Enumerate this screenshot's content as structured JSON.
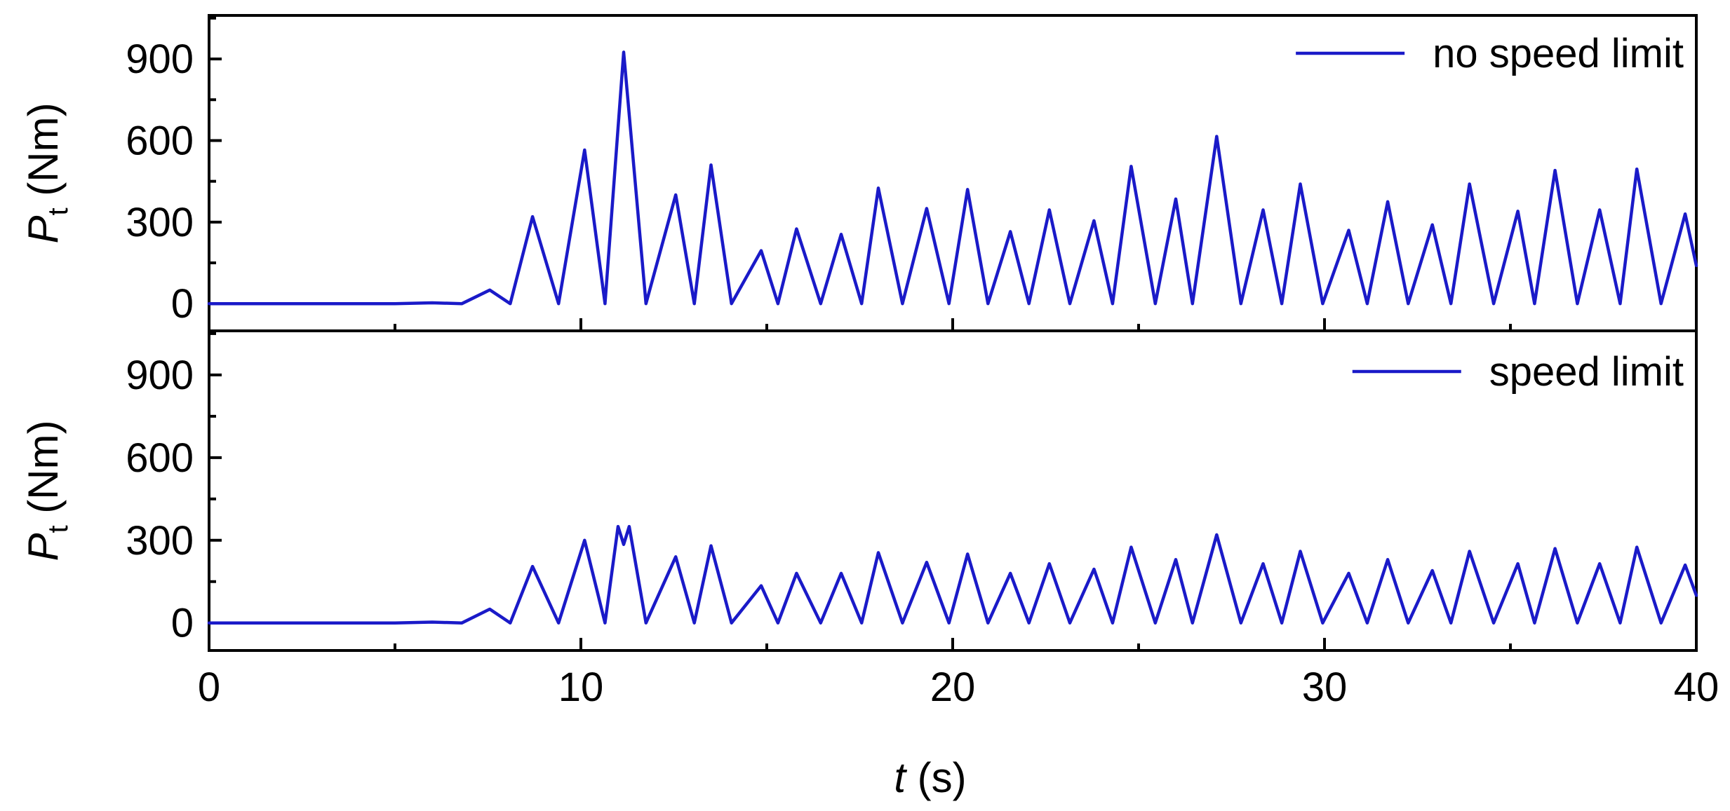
{
  "chart_data": [
    {
      "type": "line",
      "xlabel_var": "t",
      "xlabel_unit": " (s)",
      "ylabel_var": "P",
      "ylabel_sub": "t",
      "ylabel_unit": " (Nm)",
      "xlim": [
        0,
        40
      ],
      "ylim": [
        -100,
        1060
      ],
      "x_ticks": [
        0,
        10,
        20,
        30,
        40
      ],
      "y_ticks": [
        0,
        300,
        600,
        900
      ],
      "grid": false,
      "legend_position": "top-right",
      "series_color": "#1a1ac8",
      "series": [
        {
          "name": "no speed limit",
          "x": [
            0,
            5,
            6,
            6.8,
            7.55,
            8.1,
            8.7,
            9.4,
            10.1,
            10.65,
            11.15,
            11.75,
            12.55,
            13.05,
            13.5,
            14.05,
            14.85,
            15.3,
            15.8,
            16.45,
            17.0,
            17.55,
            18.0,
            18.65,
            19.3,
            19.9,
            20.4,
            20.95,
            21.55,
            22.05,
            22.6,
            23.15,
            23.8,
            24.3,
            24.8,
            25.45,
            26.0,
            26.45,
            27.1,
            27.75,
            28.35,
            28.85,
            29.35,
            29.95,
            30.65,
            31.15,
            31.7,
            32.25,
            32.9,
            33.4,
            33.9,
            34.55,
            35.2,
            35.65,
            36.2,
            36.8,
            37.4,
            37.95,
            38.4,
            39.05,
            39.7,
            40.0
          ],
          "y": [
            0,
            0,
            3,
            0,
            50,
            0,
            320,
            0,
            565,
            0,
            925,
            0,
            400,
            0,
            510,
            0,
            195,
            0,
            275,
            0,
            255,
            0,
            425,
            0,
            350,
            0,
            420,
            0,
            265,
            0,
            345,
            0,
            305,
            0,
            505,
            0,
            385,
            0,
            615,
            0,
            345,
            0,
            440,
            0,
            270,
            0,
            375,
            0,
            290,
            0,
            440,
            0,
            340,
            0,
            490,
            0,
            345,
            0,
            495,
            0,
            330,
            140
          ]
        },
        {
          "name": "speed limit",
          "x": [
            0,
            5,
            6,
            6.8,
            7.55,
            8.1,
            8.7,
            9.4,
            10.1,
            10.65,
            11.0,
            11.15,
            11.3,
            11.75,
            12.55,
            13.05,
            13.5,
            14.05,
            14.85,
            15.3,
            15.8,
            16.45,
            17.0,
            17.55,
            18.0,
            18.65,
            19.3,
            19.9,
            20.4,
            20.95,
            21.55,
            22.05,
            22.6,
            23.15,
            23.8,
            24.3,
            24.8,
            25.45,
            26.0,
            26.45,
            27.1,
            27.75,
            28.35,
            28.85,
            29.35,
            29.95,
            30.65,
            31.15,
            31.7,
            32.25,
            32.9,
            33.4,
            33.9,
            34.55,
            35.2,
            35.65,
            36.2,
            36.8,
            37.4,
            37.95,
            38.4,
            39.05,
            39.7,
            40.0
          ],
          "y": [
            0,
            0,
            3,
            0,
            50,
            0,
            205,
            0,
            300,
            0,
            350,
            285,
            350,
            0,
            240,
            0,
            280,
            0,
            135,
            0,
            180,
            0,
            180,
            0,
            255,
            0,
            220,
            0,
            250,
            0,
            180,
            0,
            215,
            0,
            195,
            0,
            275,
            0,
            230,
            0,
            320,
            0,
            215,
            0,
            260,
            0,
            180,
            0,
            230,
            0,
            190,
            0,
            260,
            0,
            215,
            0,
            270,
            0,
            215,
            0,
            275,
            0,
            210,
            100
          ]
        }
      ]
    }
  ]
}
